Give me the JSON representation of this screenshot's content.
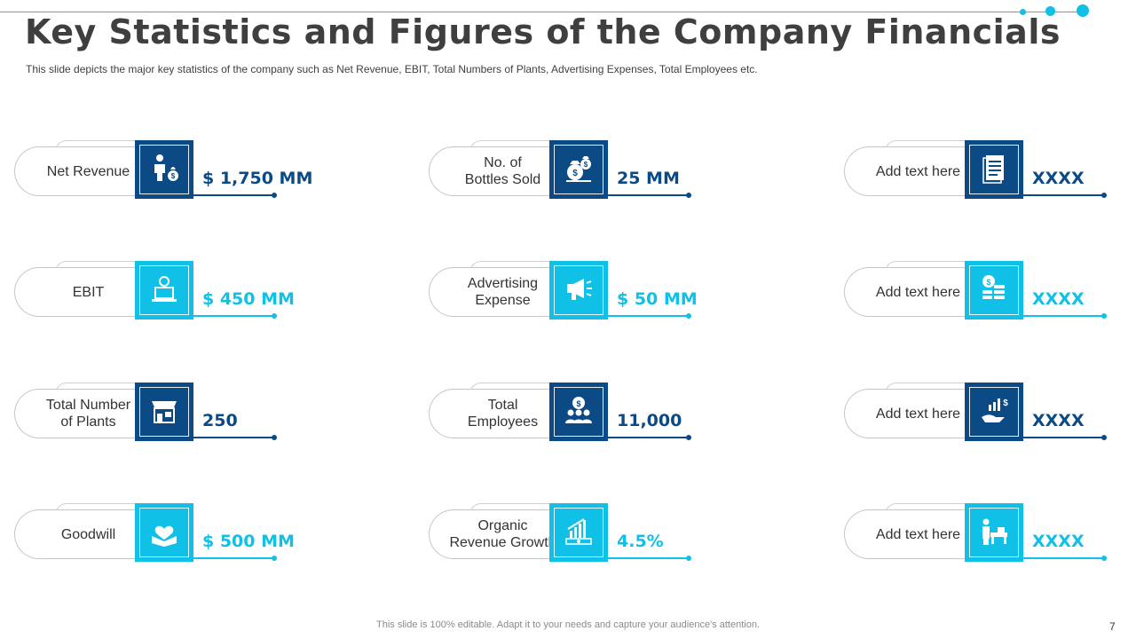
{
  "title": "Key Statistics and Figures of the Company Financials",
  "subtitle": "This slide depicts the major key statistics of the company such as Net Revenue,  EBIT, Total Numbers of Plants, Advertising Expenses, Total Employees etc.",
  "colors": {
    "dark": "#0b4a84",
    "light": "#11c0e6",
    "title": "#3f3f3f"
  },
  "cards": [
    {
      "label": "Net Revenue",
      "value": "$ 1,750 MM",
      "icon": "businessman-money-bag-icon",
      "theme": "dark"
    },
    {
      "label": "No. of\nBottles Sold",
      "value": "25 MM",
      "icon": "money-bags-icon",
      "theme": "dark"
    },
    {
      "label": "Add text here",
      "value": "XXXX",
      "icon": "document-icon",
      "theme": "dark"
    },
    {
      "label": "EBIT",
      "value": "$ 450 MM",
      "icon": "laptop-tools-icon",
      "theme": "light"
    },
    {
      "label": "Advertising\nExpense",
      "value": "$ 50 MM",
      "icon": "megaphone-icon",
      "theme": "light"
    },
    {
      "label": "Add text here",
      "value": "XXXX",
      "icon": "coin-stacks-icon",
      "theme": "light"
    },
    {
      "label": "Total Number\nof Plants",
      "value": "250",
      "icon": "storefront-icon",
      "theme": "dark"
    },
    {
      "label": "Total\nEmployees",
      "value": "11,000",
      "icon": "team-dollar-icon",
      "theme": "dark"
    },
    {
      "label": "Add text here",
      "value": "XXXX",
      "icon": "hand-growth-icon",
      "theme": "dark"
    },
    {
      "label": "Goodwill",
      "value": "$ 500 MM",
      "icon": "heart-box-icon",
      "theme": "light"
    },
    {
      "label": "Organic\nRevenue Growth",
      "value": "4.5%",
      "icon": "growth-chart-money-icon",
      "theme": "light"
    },
    {
      "label": "Add text here",
      "value": "XXXX",
      "icon": "worker-desk-icon",
      "theme": "light"
    }
  ],
  "footer": "This slide is 100% editable. Adapt it to your needs and capture your audience's attention.",
  "page_number": "7"
}
